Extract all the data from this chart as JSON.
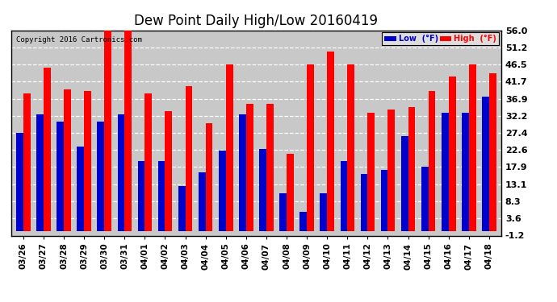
{
  "title": "Dew Point Daily High/Low 20160419",
  "copyright": "Copyright 2016 Cartronics.com",
  "dates": [
    "03/26",
    "03/27",
    "03/28",
    "03/29",
    "03/30",
    "03/31",
    "04/01",
    "04/02",
    "04/03",
    "04/04",
    "04/05",
    "04/06",
    "04/07",
    "04/08",
    "04/09",
    "04/10",
    "04/11",
    "04/12",
    "04/13",
    "04/14",
    "04/15",
    "04/16",
    "04/17",
    "04/18"
  ],
  "high": [
    38.5,
    45.5,
    39.5,
    39.0,
    57.0,
    57.0,
    38.5,
    33.5,
    40.5,
    30.0,
    46.5,
    35.5,
    35.5,
    21.5,
    46.5,
    50.0,
    46.5,
    33.0,
    34.0,
    34.5,
    39.0,
    43.0,
    46.5,
    44.0
  ],
  "low": [
    27.5,
    32.5,
    30.5,
    23.5,
    30.5,
    32.5,
    19.5,
    19.5,
    12.5,
    16.5,
    22.5,
    32.5,
    23.0,
    10.5,
    5.5,
    10.5,
    19.5,
    16.0,
    17.0,
    26.5,
    18.0,
    33.0,
    33.0,
    37.5
  ],
  "yticks": [
    -1.2,
    3.6,
    8.3,
    13.1,
    17.9,
    22.6,
    27.4,
    32.2,
    36.9,
    41.7,
    46.5,
    51.2,
    56.0
  ],
  "ymin": -1.2,
  "ymax": 56.0,
  "high_color": "#ff0000",
  "low_color": "#0000cc",
  "plot_bg_color": "#c8c8c8",
  "fig_bg_color": "#ffffff",
  "grid_color": "#ffffff",
  "title_fontsize": 12,
  "bar_width": 0.35,
  "legend_high_label": "High  (°F)",
  "legend_low_label": "Low  (°F)"
}
